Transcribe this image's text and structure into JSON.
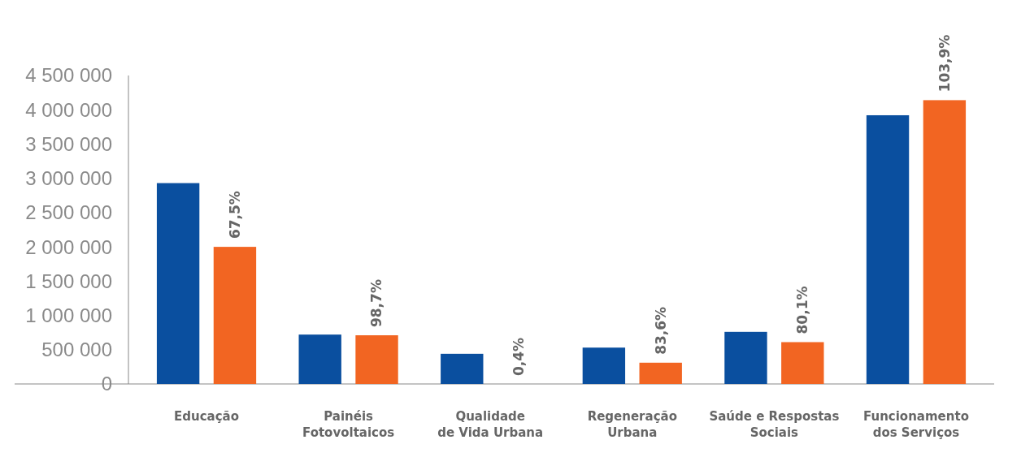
{
  "chart_data": {
    "type": "bar",
    "categories": [
      "Educação",
      "Painéis\nFotovoltaicos",
      "Qualidade\nde Vida Urbana",
      "Regeneração\nUrbana",
      "Saúde e Respostas\nSociais",
      "Funcionamento\ndos Serviços"
    ],
    "series": [
      {
        "color": "#0a4f9f",
        "values": [
          2930000,
          720000,
          440000,
          530000,
          760000,
          3920000
        ]
      },
      {
        "color": "#f26522",
        "values": [
          2000000,
          710000,
          0,
          310000,
          610000,
          4140000
        ]
      }
    ],
    "annotations": [
      "67,5%",
      "98,7%",
      "0,4%",
      "83,6%",
      "80,1%",
      "103,9%"
    ],
    "ylim": [
      0,
      4500000
    ],
    "yticks": [
      {
        "value": 0,
        "label": "0"
      },
      {
        "value": 500000,
        "label": "500 000"
      },
      {
        "value": 1000000,
        "label": "1 000 000"
      },
      {
        "value": 1500000,
        "label": "1 500 000"
      },
      {
        "value": 2000000,
        "label": "2 000 000"
      },
      {
        "value": 2500000,
        "label": "2 500 000"
      },
      {
        "value": 3000000,
        "label": "3 000 000"
      },
      {
        "value": 3500000,
        "label": "3 500 000"
      },
      {
        "value": 4000000,
        "label": "4 000 000"
      },
      {
        "value": 4500000,
        "label": "4 500 000"
      }
    ],
    "grid": false
  }
}
